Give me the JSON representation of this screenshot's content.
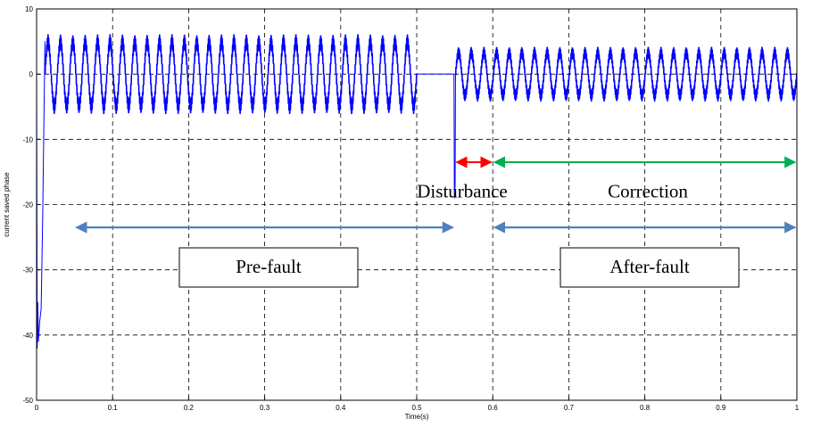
{
  "chart_data": {
    "type": "line",
    "title": "",
    "xlabel": "Time(s)",
    "ylabel": "current saved phase",
    "xlim": [
      0,
      1
    ],
    "ylim": [
      -50,
      10
    ],
    "grid": true,
    "x_ticks": [
      "0",
      "0.1",
      "0.2",
      "0.3",
      "0.4",
      "0.5",
      "0.6",
      "0.7",
      "0.8",
      "0.9",
      "1"
    ],
    "y_ticks": [
      "10",
      "0",
      "-10",
      "-20",
      "-30",
      "-40",
      "-50"
    ],
    "series": [
      {
        "color": "#0000ff",
        "segments": [
          {
            "t_start": 0.0,
            "t_end": 0.004,
            "kind": "startup-transient",
            "min": -42,
            "max": 0
          },
          {
            "t_start": 0.004,
            "t_end": 0.011,
            "kind": "recovery",
            "min": -36,
            "max": 5
          },
          {
            "t_start": 0.011,
            "t_end": 0.5,
            "kind": "oscillation",
            "amplitude": 6,
            "cycles": 30,
            "ripple": 1.2
          },
          {
            "t_start": 0.5,
            "t_end": 0.549,
            "kind": "flat",
            "value": 0
          },
          {
            "t_start": 0.549,
            "t_end": 0.551,
            "kind": "spike",
            "min": -19,
            "max": 0
          },
          {
            "t_start": 0.551,
            "t_end": 1.0,
            "kind": "oscillation",
            "amplitude": 4,
            "cycles": 27,
            "ripple": 0.9
          }
        ]
      }
    ],
    "annotations": [
      {
        "id": "disturbance",
        "text": "Disturbance",
        "color": "#ff0000",
        "x_start": 0.55,
        "x_end": 0.6,
        "y": -13.5,
        "label_y": -18.5
      },
      {
        "id": "correction",
        "text": "Correction",
        "color": "#00b050",
        "x_start": 0.6,
        "x_end": 1.0,
        "y": -13.5,
        "label_y": -18.5
      },
      {
        "id": "prefault",
        "text": "Pre-fault",
        "color": "#4f81bd",
        "x_start": 0.05,
        "x_end": 0.55,
        "y": -23.5,
        "label_y": -29.5
      },
      {
        "id": "afterfault",
        "text": "After-fault",
        "color": "#4f81bd",
        "x_start": 0.6,
        "x_end": 1.0,
        "y": -23.5,
        "label_y": -29.5
      }
    ]
  }
}
